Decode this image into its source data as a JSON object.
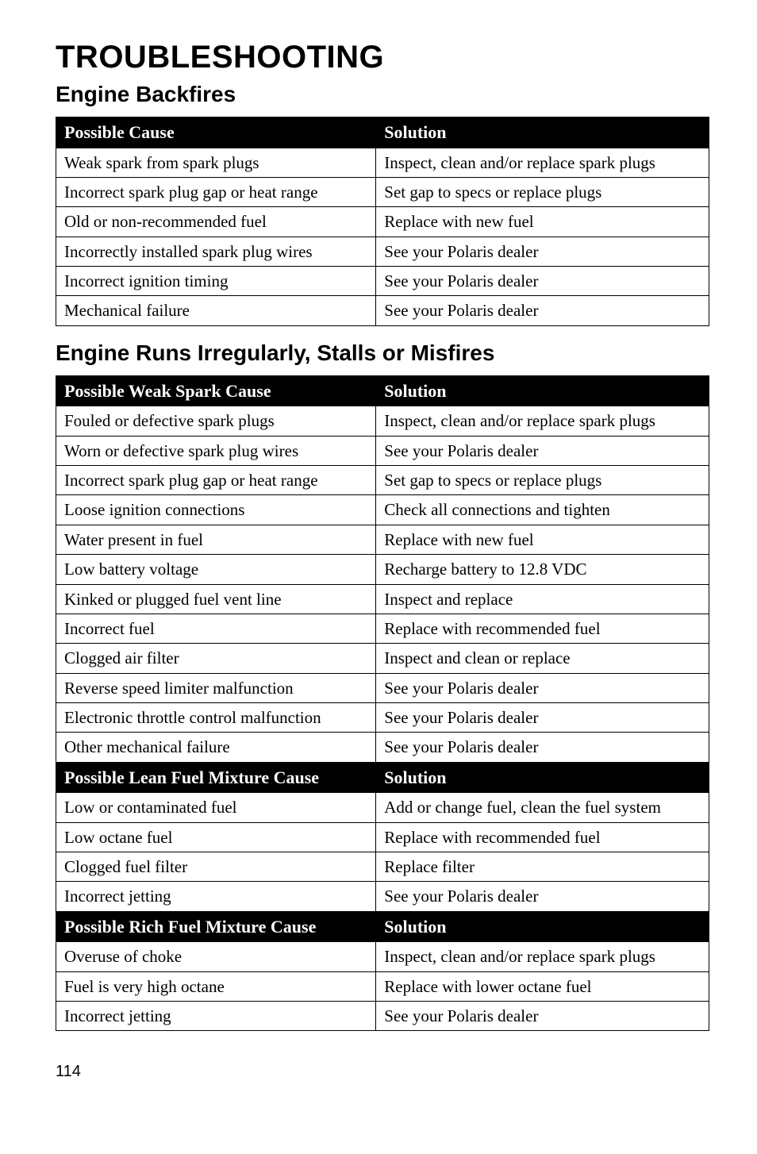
{
  "page": {
    "title": "TROUBLESHOOTING",
    "page_number": "114"
  },
  "sections": [
    {
      "heading": "Engine Backfires",
      "blocks": [
        {
          "headers": {
            "cause": "Possible Cause",
            "solution": "Solution"
          },
          "rows": [
            {
              "cause": "Weak spark from spark plugs",
              "solution": "Inspect, clean and/or replace spark plugs"
            },
            {
              "cause": "Incorrect spark plug gap or heat range",
              "solution": "Set gap to specs or replace plugs"
            },
            {
              "cause": "Old or non-recommended fuel",
              "solution": "Replace with new fuel"
            },
            {
              "cause": "Incorrectly installed spark plug wires",
              "solution": "See your Polaris dealer"
            },
            {
              "cause": "Incorrect ignition timing",
              "solution": "See your Polaris dealer"
            },
            {
              "cause": "Mechanical failure",
              "solution": "See your Polaris dealer"
            }
          ]
        }
      ]
    },
    {
      "heading": "Engine Runs Irregularly, Stalls or Misfires",
      "blocks": [
        {
          "headers": {
            "cause": "Possible Weak Spark Cause",
            "solution": "Solution"
          },
          "rows": [
            {
              "cause": "Fouled or defective spark plugs",
              "solution": "Inspect, clean and/or replace spark plugs"
            },
            {
              "cause": "Worn or defective spark plug wires",
              "solution": "See your Polaris dealer"
            },
            {
              "cause": "Incorrect spark plug gap or heat range",
              "solution": "Set gap to specs or replace plugs"
            },
            {
              "cause": "Loose ignition connections",
              "solution": "Check all connections and tighten"
            },
            {
              "cause": "Water present in fuel",
              "solution": "Replace with new fuel"
            },
            {
              "cause": "Low battery voltage",
              "solution": "Recharge battery to 12.8 VDC"
            },
            {
              "cause": "Kinked or plugged fuel vent line",
              "solution": "Inspect and replace"
            },
            {
              "cause": "Incorrect fuel",
              "solution": "Replace with recommended fuel"
            },
            {
              "cause": "Clogged air filter",
              "solution": "Inspect and clean or replace"
            },
            {
              "cause": "Reverse speed limiter malfunction",
              "solution": "See your Polaris dealer"
            },
            {
              "cause": "Electronic throttle control malfunction",
              "solution": "See your Polaris dealer"
            },
            {
              "cause": "Other mechanical failure",
              "solution": "See your Polaris dealer"
            }
          ]
        },
        {
          "headers": {
            "cause": "Possible Lean Fuel Mixture Cause",
            "solution": "Solution"
          },
          "rows": [
            {
              "cause": "Low or contaminated fuel",
              "solution": "Add or change fuel, clean the fuel system"
            },
            {
              "cause": "Low octane fuel",
              "solution": "Replace with recommended fuel"
            },
            {
              "cause": "Clogged fuel filter",
              "solution": "Replace filter"
            },
            {
              "cause": "Incorrect jetting",
              "solution": "See your Polaris dealer"
            }
          ]
        },
        {
          "headers": {
            "cause": "Possible Rich Fuel Mixture Cause",
            "solution": "Solution"
          },
          "rows": [
            {
              "cause": "Overuse of choke",
              "solution": "Inspect, clean and/or replace spark plugs"
            },
            {
              "cause": "Fuel is very high octane",
              "solution": "Replace with lower octane fuel"
            },
            {
              "cause": "Incorrect jetting",
              "solution": "See your Polaris dealer"
            }
          ]
        }
      ]
    }
  ]
}
